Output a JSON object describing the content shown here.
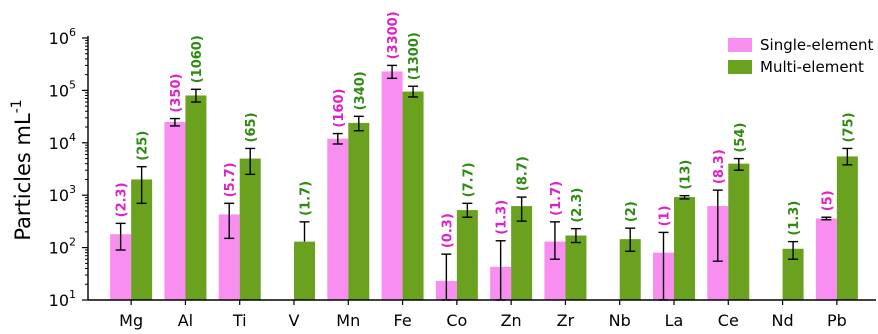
{
  "chart_data": {
    "type": "bar",
    "scale": "log",
    "ylabel": "Particles mL",
    "ylabel_superscript": "-1",
    "ylim": [
      10,
      1000000
    ],
    "y_ticks": [
      {
        "base": "10",
        "exp": "1",
        "value": 10
      },
      {
        "base": "10",
        "exp": "2",
        "value": 100
      },
      {
        "base": "10",
        "exp": "3",
        "value": 1000
      },
      {
        "base": "10",
        "exp": "4",
        "value": 10000
      },
      {
        "base": "10",
        "exp": "5",
        "value": 100000
      },
      {
        "base": "10",
        "exp": "6",
        "value": 1000000
      }
    ],
    "categories": [
      "Mg",
      "Al",
      "Ti",
      "V",
      "Mn",
      "Fe",
      "Co",
      "Zn",
      "Zr",
      "Nb",
      "La",
      "Ce",
      "Nd",
      "Pb"
    ],
    "legend_position": "top-right",
    "grid": false,
    "series": [
      {
        "name": "Single-element",
        "color": "#f78ef0",
        "label_color": "#e020c8",
        "values": [
          180,
          25000,
          430,
          null,
          12000,
          230000,
          23,
          43,
          130,
          null,
          80,
          620,
          null,
          360
        ],
        "err_low": [
          90,
          21000,
          150,
          null,
          9500,
          170000,
          10,
          10,
          60,
          null,
          10,
          55,
          null,
          340
        ],
        "err_high": [
          290,
          29000,
          700,
          null,
          15000,
          300000,
          75,
          135,
          310,
          null,
          195,
          1250,
          null,
          380
        ],
        "labels": [
          "(2.3)",
          "(350)",
          "(5.7)",
          "",
          "(160)",
          "(3300)",
          "(0.3)",
          "(1.3)",
          "(1.7)",
          "",
          "(1)",
          "(8.3)",
          "",
          "(5)"
        ]
      },
      {
        "name": "Multi-element",
        "color": "#6aa220",
        "label_color": "#2f8a12",
        "values": [
          2000,
          80000,
          5000,
          130,
          24000,
          95000,
          520,
          620,
          170,
          145,
          920,
          4000,
          95,
          5500
        ],
        "err_low": [
          700,
          60000,
          2500,
          null,
          17000,
          75000,
          380,
          320,
          125,
          85,
          850,
          3000,
          60,
          3800
        ],
        "err_high": [
          3500,
          105000,
          7800,
          310,
          32000,
          120000,
          700,
          920,
          230,
          235,
          980,
          5000,
          130,
          7800
        ],
        "labels": [
          "(25)",
          "(1060)",
          "(65)",
          "(1.7)",
          "(340)",
          "(1300)",
          "(7.7)",
          "(8.7)",
          "(2.3)",
          "(2)",
          "(13)",
          "(54)",
          "(1.3)",
          "(75)"
        ]
      }
    ]
  }
}
